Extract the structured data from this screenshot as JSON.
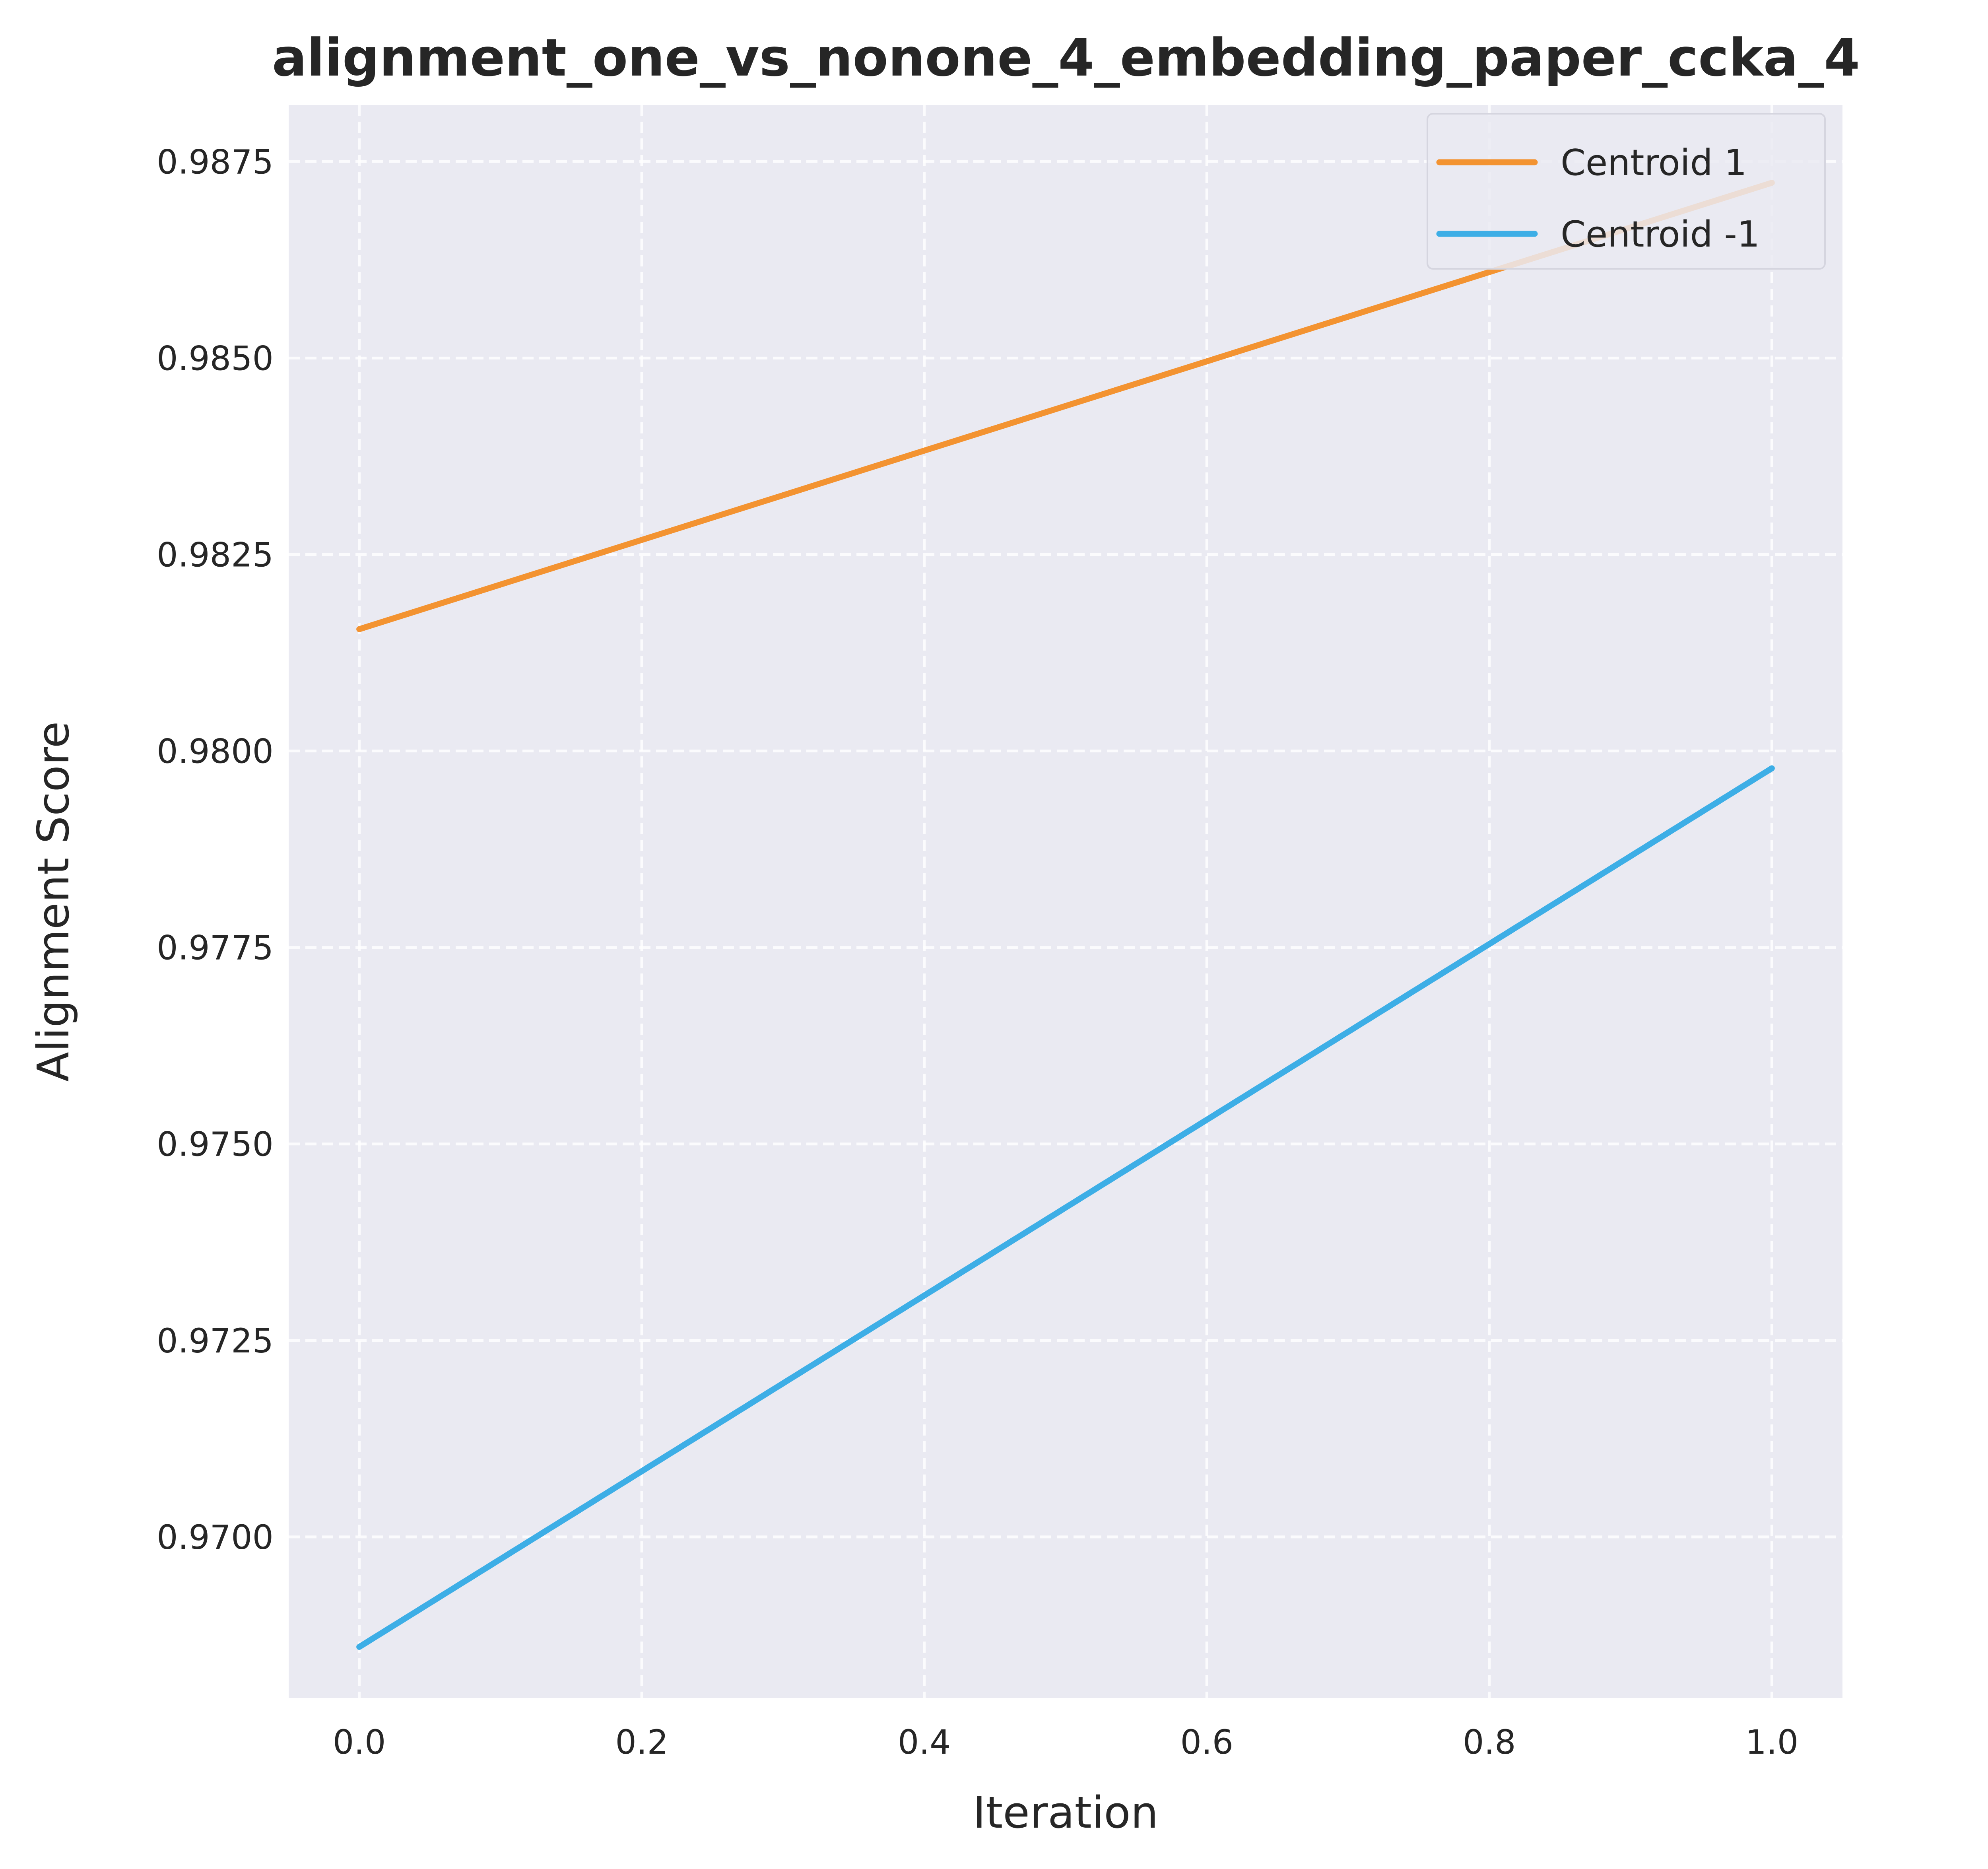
{
  "chart_data": {
    "type": "line",
    "title": "alignment_one_vs_nonone_4_embedding_paper_ccka_4",
    "xlabel": "Iteration",
    "ylabel": "Alignment Score",
    "x": [
      0.0,
      1.0
    ],
    "xlim": [
      -0.05,
      1.05
    ],
    "ylim": [
      0.96795,
      0.98822
    ],
    "x_ticks": [
      "0.0",
      "0.2",
      "0.4",
      "0.6",
      "0.8",
      "1.0"
    ],
    "x_tick_values": [
      0.0,
      0.2,
      0.4,
      0.6,
      0.8,
      1.0
    ],
    "y_ticks": [
      "0.9700",
      "0.9725",
      "0.9750",
      "0.9775",
      "0.9800",
      "0.9825",
      "0.9850",
      "0.9875"
    ],
    "y_tick_values": [
      0.97,
      0.9725,
      0.975,
      0.9775,
      0.98,
      0.9825,
      0.985,
      0.9875
    ],
    "grid": true,
    "legend_position": "top-right",
    "background_color": "#eaeaf2",
    "series": [
      {
        "name": "Centroid 1",
        "color": "#f39331",
        "values": [
          0.98155,
          0.98723
        ]
      },
      {
        "name": "Centroid -1",
        "color": "#3daee6",
        "values": [
          0.9686,
          0.97978
        ]
      }
    ]
  }
}
